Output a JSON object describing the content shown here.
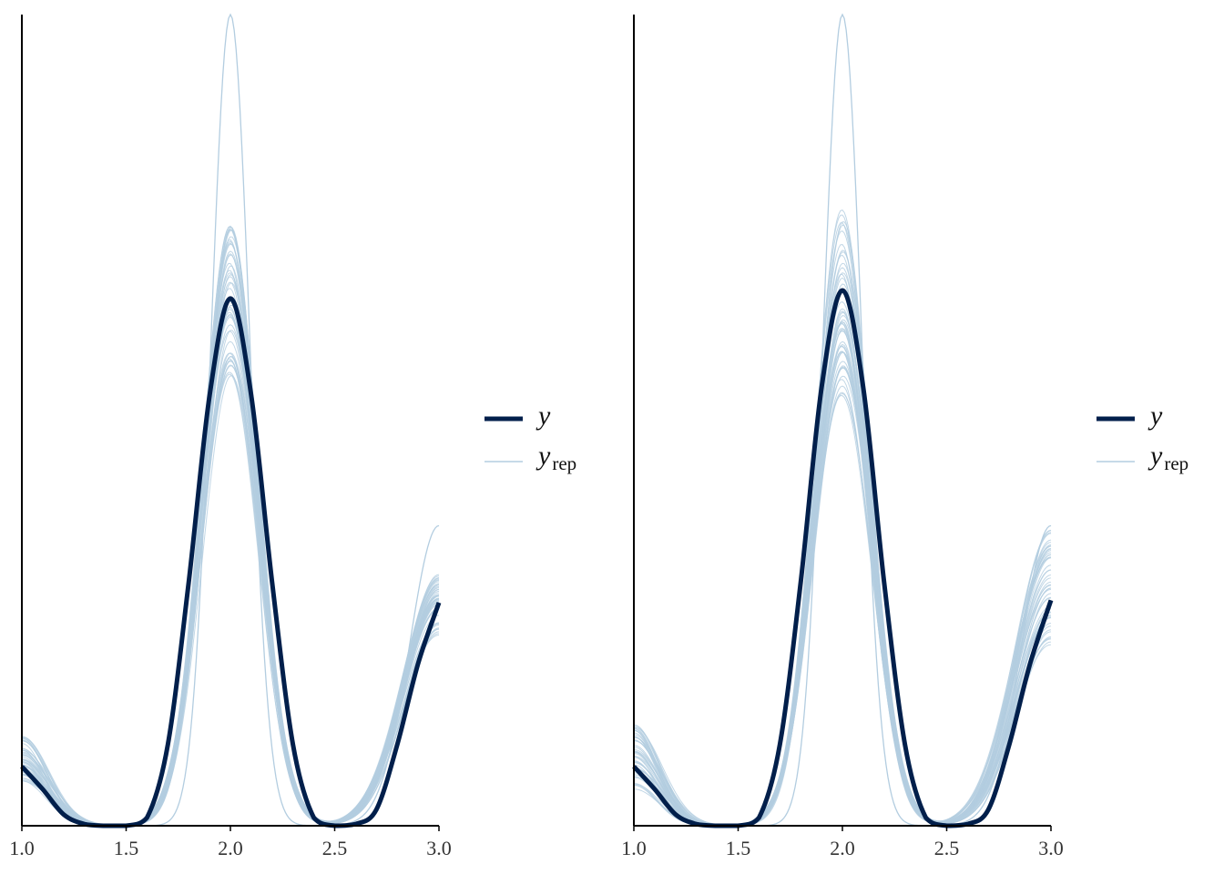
{
  "chart_data": [
    {
      "type": "line",
      "panel": "left",
      "xlim": [
        1.0,
        3.0
      ],
      "x_ticks": [
        "1.0",
        "1.5",
        "2.0",
        "2.5",
        "3.0"
      ],
      "ylabel": "",
      "y_axis_ticks": "none",
      "grid": false,
      "legend_position": "right",
      "series": [
        {
          "name": "y",
          "color": "#011f4b",
          "x": [
            1.0,
            1.1,
            1.2,
            1.3,
            1.4,
            1.5,
            1.6,
            1.7,
            1.8,
            1.9,
            2.0,
            2.1,
            2.2,
            2.3,
            2.4,
            2.5,
            2.6,
            2.7,
            2.8,
            2.9,
            3.0
          ],
          "values": [
            0.073,
            0.045,
            0.014,
            0.002,
            0.0,
            0.0,
            0.01,
            0.1,
            0.3,
            0.53,
            0.65,
            0.53,
            0.3,
            0.1,
            0.01,
            0.0,
            0.002,
            0.02,
            0.1,
            0.2,
            0.275
          ]
        }
      ],
      "replicates": {
        "name": "y_rep",
        "color": "#b3cde0",
        "count": 50,
        "peak_range": [
          0.55,
          0.74
        ],
        "left_edge_range": [
          0.055,
          0.115
        ],
        "right_edge_range": [
          0.235,
          0.31
        ],
        "outlier_peak": 1.0,
        "outlier_right_edge": 0.37
      }
    },
    {
      "type": "line",
      "panel": "right",
      "xlim": [
        1.0,
        3.0
      ],
      "x_ticks": [
        "1.0",
        "1.5",
        "2.0",
        "2.5",
        "3.0"
      ],
      "ylabel": "",
      "y_axis_ticks": "none",
      "grid": false,
      "legend_position": "right",
      "series": [
        {
          "name": "y",
          "color": "#011f4b",
          "x": [
            1.0,
            1.1,
            1.2,
            1.3,
            1.4,
            1.5,
            1.6,
            1.7,
            1.8,
            1.9,
            2.0,
            2.1,
            2.2,
            2.3,
            2.4,
            2.5,
            2.6,
            2.7,
            2.8,
            2.9,
            3.0
          ],
          "values": [
            0.073,
            0.045,
            0.014,
            0.002,
            0.0,
            0.0,
            0.01,
            0.1,
            0.3,
            0.54,
            0.66,
            0.54,
            0.3,
            0.1,
            0.01,
            0.0,
            0.002,
            0.02,
            0.1,
            0.2,
            0.278
          ]
        }
      ],
      "replicates": {
        "name": "y_rep",
        "color": "#b3cde0",
        "count": 50,
        "peak_range": [
          0.53,
          0.76
        ],
        "left_edge_range": [
          0.045,
          0.125
        ],
        "right_edge_range": [
          0.22,
          0.37
        ],
        "outlier_peak": 1.0,
        "outlier_right_edge": 0.37
      }
    }
  ],
  "legend": {
    "y_label": "y",
    "yrep_label": "y",
    "yrep_subscript": "rep"
  }
}
